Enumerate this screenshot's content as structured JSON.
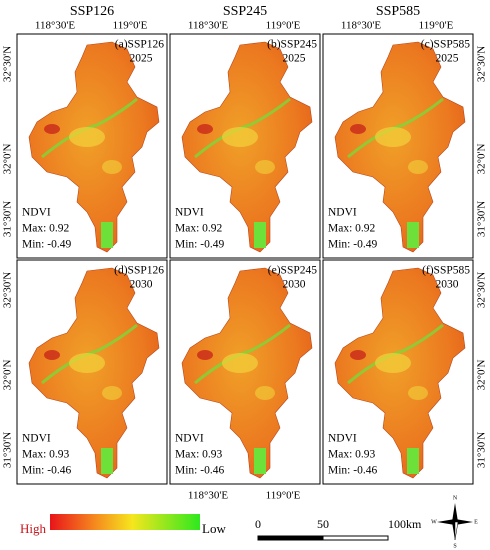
{
  "column_titles": [
    "SSP126",
    "SSP245",
    "SSP585"
  ],
  "lon_labels": [
    "118°30'E",
    "119°0'E"
  ],
  "lat_labels": [
    "32°30'N",
    "32°0'N",
    "31°30'N"
  ],
  "panels": [
    {
      "label": "(a)SSP126",
      "year": "2025",
      "index": "NDVI",
      "max": "Max: 0.92",
      "min": "Min: -0.49"
    },
    {
      "label": "(b)SSP245",
      "year": "2025",
      "index": "NDVI",
      "max": "Max: 0.92",
      "min": "Min: -0.49"
    },
    {
      "label": "(c)SSP585",
      "year": "2025",
      "index": "NDVI",
      "max": "Max: 0.92",
      "min": "Min: -0.49"
    },
    {
      "label": "(d)SSP126",
      "year": "2030",
      "index": "NDVI",
      "max": "Max: 0.93",
      "min": "Min: -0.46"
    },
    {
      "label": "(e)SSP245",
      "year": "2030",
      "index": "NDVI",
      "max": "Max: 0.93",
      "min": "Min: -0.46"
    },
    {
      "label": "(f)SSP585",
      "year": "2030",
      "index": "NDVI",
      "max": "Max: 0.93",
      "min": "Min: -0.46"
    }
  ],
  "legend": {
    "high": "High",
    "low": "Low"
  },
  "scale_bar": [
    "0",
    "50",
    "100km"
  ],
  "compass": [
    "N",
    "E",
    "S",
    "W"
  ]
}
